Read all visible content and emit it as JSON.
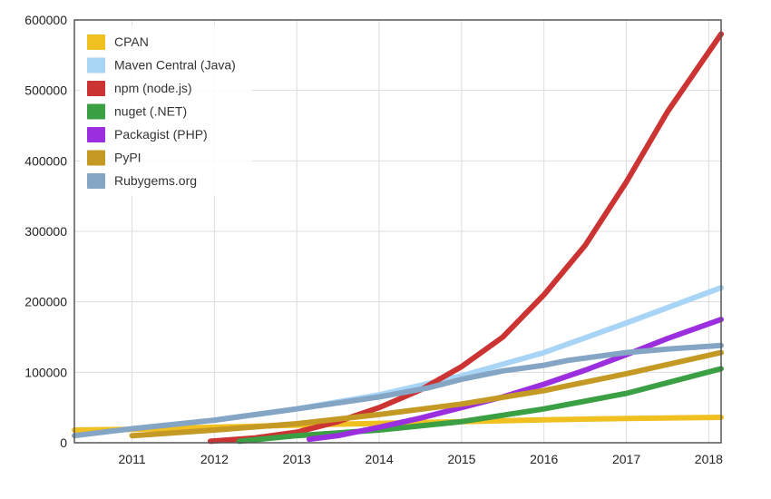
{
  "chart_data": {
    "type": "line",
    "title": "",
    "xlabel": "",
    "ylabel": "",
    "xlim": [
      2010.3,
      2018.15
    ],
    "ylim": [
      0,
      600000
    ],
    "x_ticks": [
      2011,
      2012,
      2013,
      2014,
      2015,
      2016,
      2017,
      2018
    ],
    "y_ticks": [
      0,
      100000,
      200000,
      300000,
      400000,
      500000,
      600000
    ],
    "grid": true,
    "legend_position": "top-left",
    "series": [
      {
        "name": "CPAN",
        "color": "#f0c020",
        "points": [
          [
            2010.3,
            18000
          ],
          [
            2011,
            19000
          ],
          [
            2012,
            22000
          ],
          [
            2013,
            25000
          ],
          [
            2014,
            27500
          ],
          [
            2015,
            30000
          ],
          [
            2016,
            32500
          ],
          [
            2017,
            34500
          ],
          [
            2018.15,
            36000
          ]
        ]
      },
      {
        "name": "Maven Central (Java)",
        "color": "#a8d4f5",
        "points": [
          [
            2012,
            32000
          ],
          [
            2013,
            48000
          ],
          [
            2014,
            68000
          ],
          [
            2015,
            95000
          ],
          [
            2016,
            128000
          ],
          [
            2017,
            170000
          ],
          [
            2018.15,
            220000
          ]
        ]
      },
      {
        "name": "npm (node.js)",
        "color": "#cc3333",
        "points": [
          [
            2011.95,
            2000
          ],
          [
            2012.5,
            7000
          ],
          [
            2013,
            15000
          ],
          [
            2013.5,
            30000
          ],
          [
            2014,
            50000
          ],
          [
            2014.5,
            75000
          ],
          [
            2015,
            108000
          ],
          [
            2015.5,
            150000
          ],
          [
            2016,
            210000
          ],
          [
            2016.5,
            280000
          ],
          [
            2017,
            370000
          ],
          [
            2017.5,
            470000
          ],
          [
            2018.15,
            580000
          ]
        ]
      },
      {
        "name": "nuget (.NET)",
        "color": "#3aa043",
        "points": [
          [
            2012.3,
            2000
          ],
          [
            2013,
            10000
          ],
          [
            2014,
            18000
          ],
          [
            2015,
            30000
          ],
          [
            2016,
            48000
          ],
          [
            2017,
            70000
          ],
          [
            2018.15,
            105000
          ]
        ]
      },
      {
        "name": "Packagist (PHP)",
        "color": "#9b2fe0",
        "points": [
          [
            2013.15,
            5000
          ],
          [
            2013.5,
            10000
          ],
          [
            2014,
            22000
          ],
          [
            2014.5,
            35000
          ],
          [
            2015,
            50000
          ],
          [
            2015.5,
            65000
          ],
          [
            2016,
            83000
          ],
          [
            2016.5,
            103000
          ],
          [
            2017,
            125000
          ],
          [
            2017.5,
            148000
          ],
          [
            2018.15,
            175000
          ]
        ]
      },
      {
        "name": "PyPI",
        "color": "#c49a25",
        "points": [
          [
            2011,
            10000
          ],
          [
            2012,
            18000
          ],
          [
            2013,
            27000
          ],
          [
            2014,
            40000
          ],
          [
            2015,
            55000
          ],
          [
            2016,
            74000
          ],
          [
            2017,
            98000
          ],
          [
            2018.15,
            128000
          ]
        ]
      },
      {
        "name": "Rubygems.org",
        "color": "#85a5c4",
        "points": [
          [
            2010.3,
            10000
          ],
          [
            2011,
            20000
          ],
          [
            2012,
            32000
          ],
          [
            2013,
            48000
          ],
          [
            2014,
            65000
          ],
          [
            2014.6,
            78000
          ],
          [
            2015,
            90000
          ],
          [
            2015.5,
            102000
          ],
          [
            2016,
            110000
          ],
          [
            2016.3,
            117000
          ],
          [
            2017,
            128000
          ],
          [
            2017.5,
            133000
          ],
          [
            2018.15,
            138000
          ]
        ]
      }
    ]
  }
}
